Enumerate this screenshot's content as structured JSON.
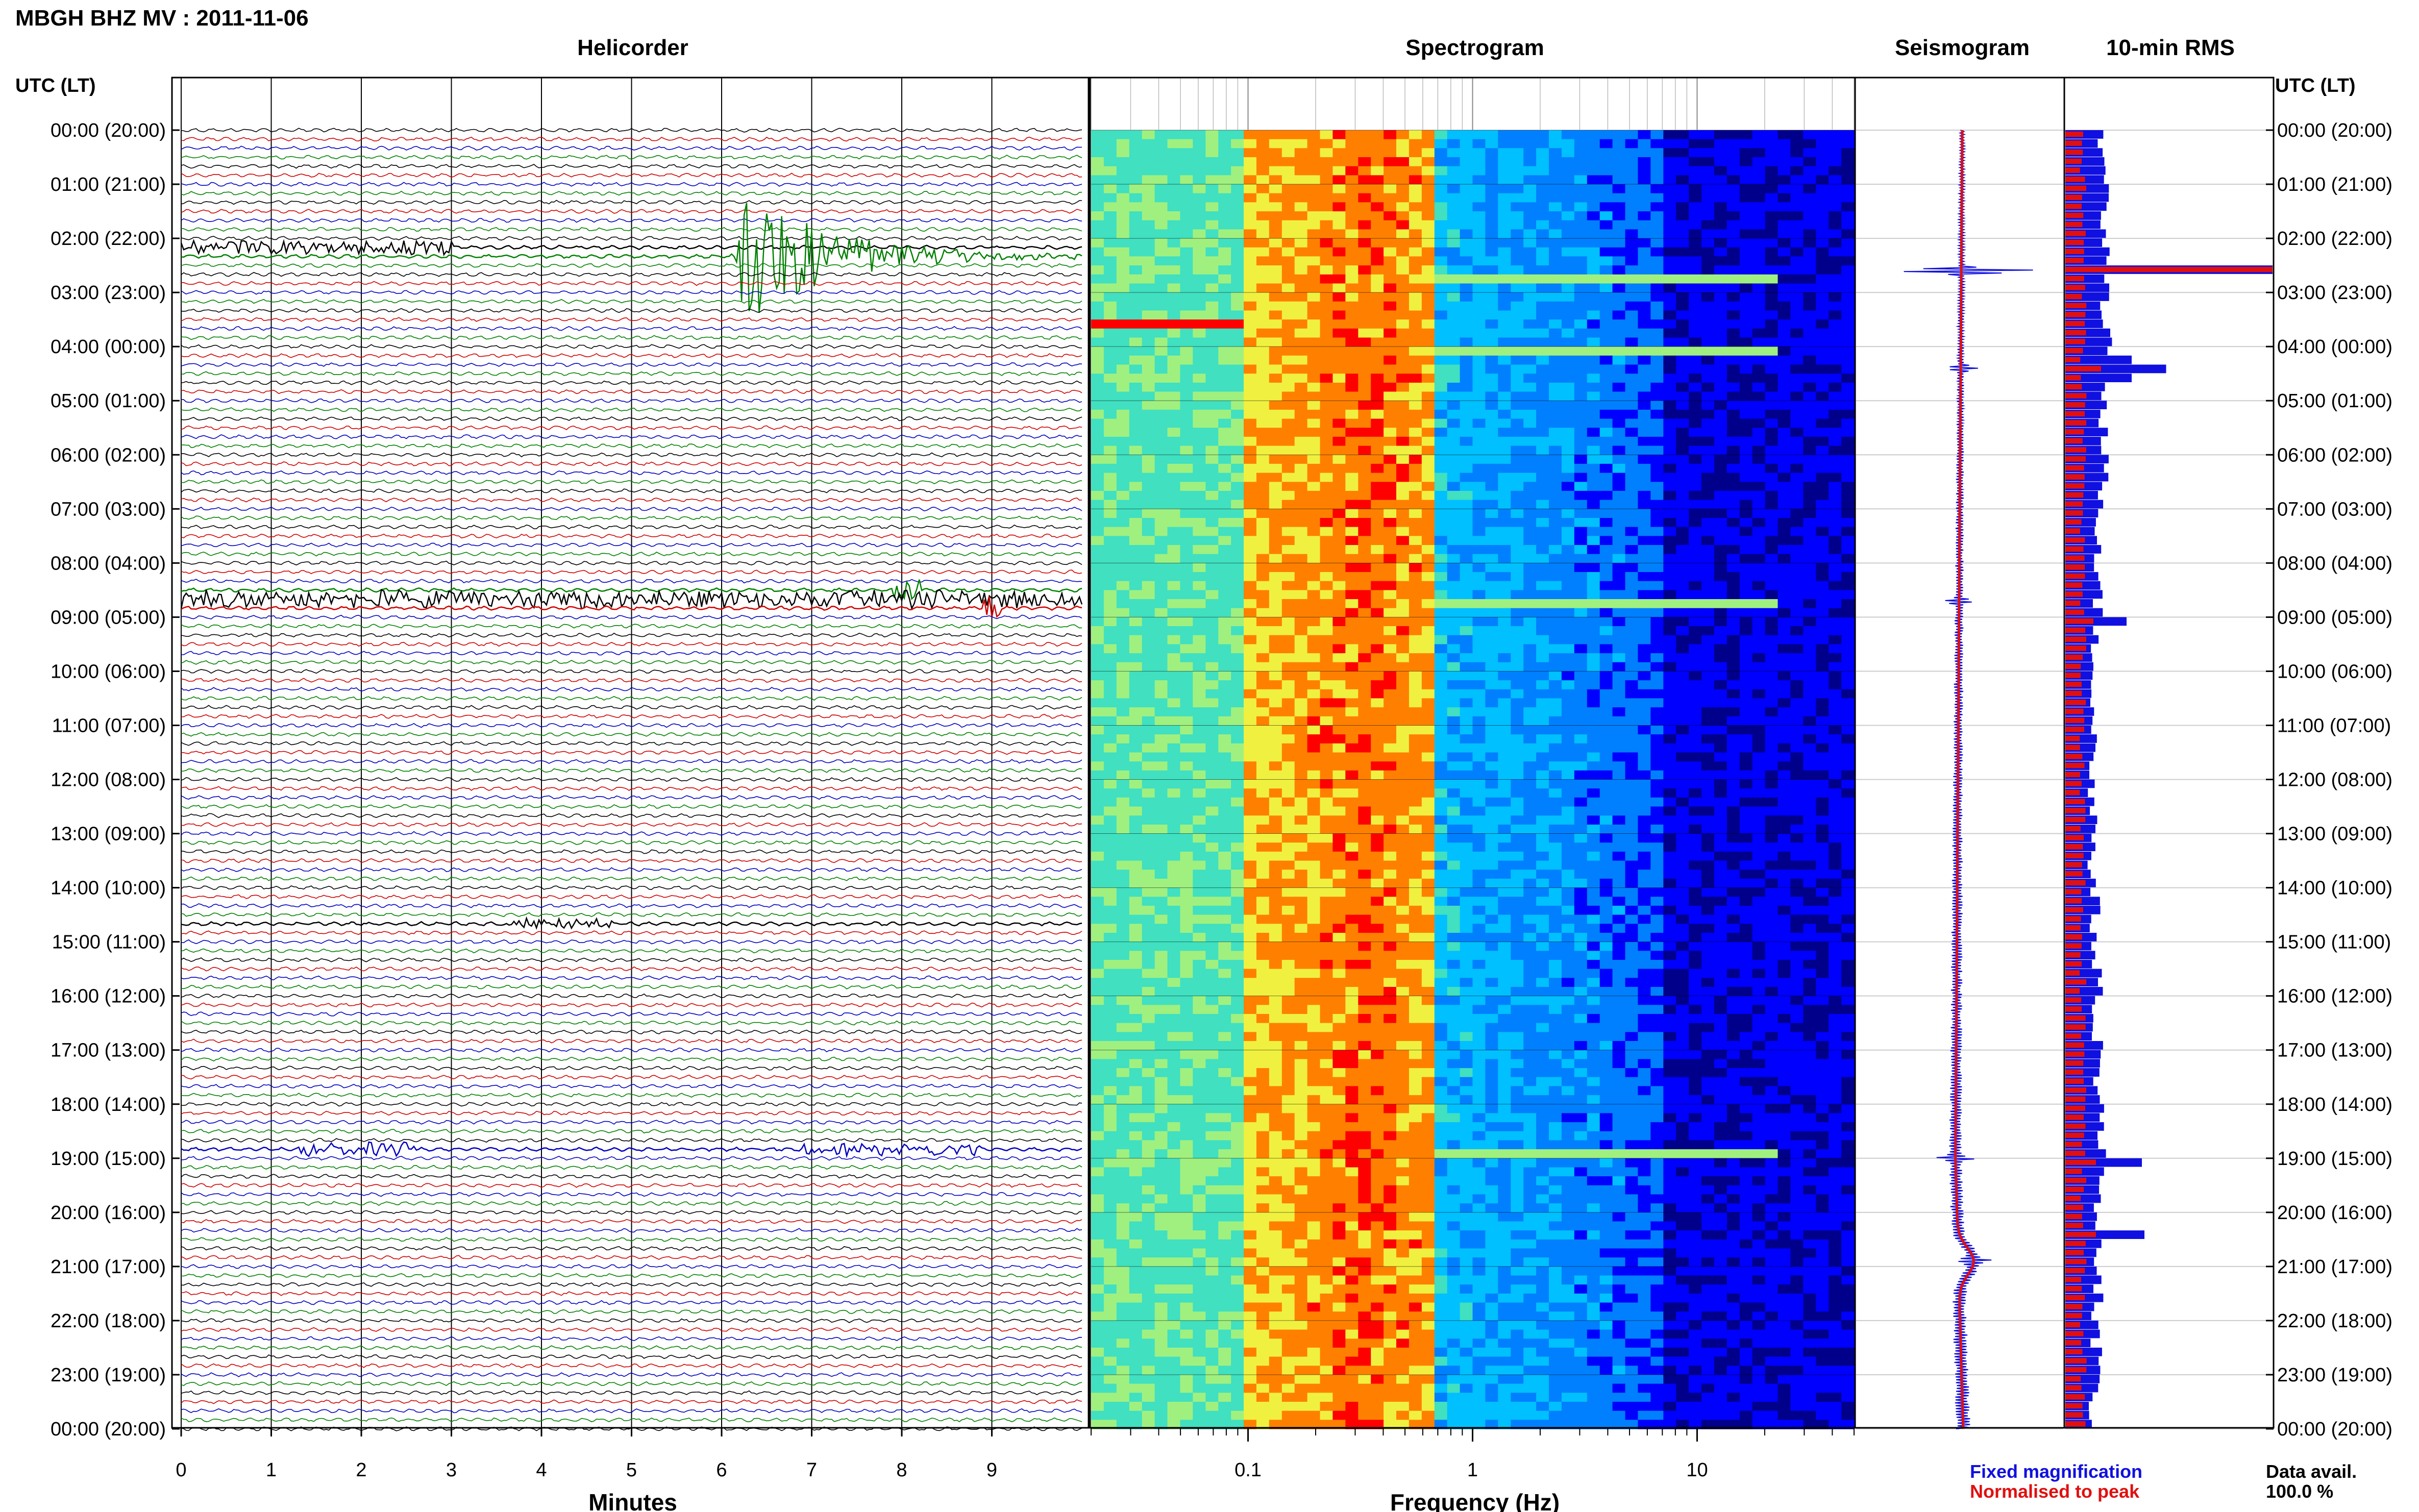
{
  "header": {
    "title": "MBGH BHZ MV : 2011-11-06"
  },
  "panels": {
    "helicorder": "Helicorder",
    "spectrogram": "Spectrogram",
    "seismogram": "Seismogram",
    "rms": "10-min RMS"
  },
  "time_axis_label_left": "UTC (LT)",
  "time_axis_label_right": "UTC (LT)",
  "time_ticks": [
    "00:00 (20:00)",
    "01:00 (21:00)",
    "02:00 (22:00)",
    "03:00 (23:00)",
    "04:00 (00:00)",
    "05:00 (01:00)",
    "06:00 (02:00)",
    "07:00 (03:00)",
    "08:00 (04:00)",
    "09:00 (05:00)",
    "10:00 (06:00)",
    "11:00 (07:00)",
    "12:00 (08:00)",
    "13:00 (09:00)",
    "14:00 (10:00)",
    "15:00 (11:00)",
    "16:00 (12:00)",
    "17:00 (13:00)",
    "18:00 (14:00)",
    "19:00 (15:00)",
    "20:00 (16:00)",
    "21:00 (17:00)",
    "22:00 (18:00)",
    "23:00 (19:00)",
    "00:00 (20:00)"
  ],
  "legend": {
    "fixed": "Fixed magnification",
    "normalised": "Normalised to peak",
    "fixed_color": "#1010e0",
    "normalised_color": "#e01010"
  },
  "data_avail": {
    "label": "Data avail.",
    "value": "100.0 %"
  },
  "chart_data": [
    {
      "type": "line",
      "title": "Helicorder",
      "xlabel": "Minutes",
      "x_ticks": [
        "0",
        "1",
        "2",
        "3",
        "4",
        "5",
        "6",
        "7",
        "8",
        "9"
      ],
      "xlim": [
        0,
        10
      ],
      "rows": 144,
      "row_minutes": 10,
      "trace_colors": [
        "#000000",
        "#d00000",
        "#0000c0",
        "#008000"
      ],
      "events": [
        {
          "row": 14,
          "start_min": 6.1,
          "end_min": 10,
          "peak_amp": 1.0,
          "color": "#008000"
        },
        {
          "row": 13,
          "start_min": 0,
          "end_min": 3.0,
          "peak_amp": 0.08,
          "color": "#000000"
        },
        {
          "row": 52,
          "start_min": 0,
          "end_min": 10,
          "peak_amp": 0.1,
          "color": "#000000"
        },
        {
          "row": 51,
          "start_min": 7.9,
          "end_min": 8.2,
          "peak_amp": 0.15,
          "color": "#008000"
        },
        {
          "row": 53,
          "start_min": 8.9,
          "end_min": 9.1,
          "peak_amp": 0.15,
          "color": "#d00000"
        },
        {
          "row": 88,
          "start_min": 3.6,
          "end_min": 4.8,
          "peak_amp": 0.06,
          "color": "#000000"
        },
        {
          "row": 113,
          "start_min": 1.3,
          "end_min": 2.6,
          "peak_amp": 0.07,
          "color": "#0000c0"
        },
        {
          "row": 113,
          "start_min": 6.9,
          "end_min": 8.9,
          "peak_amp": 0.07,
          "color": "#0000c0"
        }
      ]
    },
    {
      "type": "heatmap",
      "title": "Spectrogram",
      "xlabel": "Frequency (Hz)",
      "x_scale": "log",
      "xlim": [
        0.02,
        50
      ],
      "x_ticks": [
        "0.1",
        "1",
        "10"
      ],
      "colormap": [
        "#00008b",
        "#0000ff",
        "#0080ff",
        "#00c0ff",
        "#40e0c0",
        "#a0f080",
        "#f0f040",
        "#ff8000",
        "#ff0000"
      ],
      "bright_lines_hours": [
        2.6,
        4.0,
        8.7,
        18.9
      ]
    },
    {
      "type": "line",
      "title": "Seismogram",
      "series": [
        {
          "name": "Fixed magnification",
          "color": "#1010e0"
        },
        {
          "name": "Normalised to peak",
          "color": "#e01010"
        }
      ],
      "spikes_hours": [
        2.6,
        4.4,
        8.7,
        19.0,
        20.9
      ]
    },
    {
      "type": "bar",
      "title": "10-min RMS",
      "bins": 144,
      "peak_bins": [
        15,
        26,
        54,
        114,
        122
      ],
      "series": [
        {
          "name": "Fixed magnification",
          "color": "#1010e0"
        },
        {
          "name": "Normalised to peak",
          "color": "#e01010"
        }
      ]
    }
  ]
}
